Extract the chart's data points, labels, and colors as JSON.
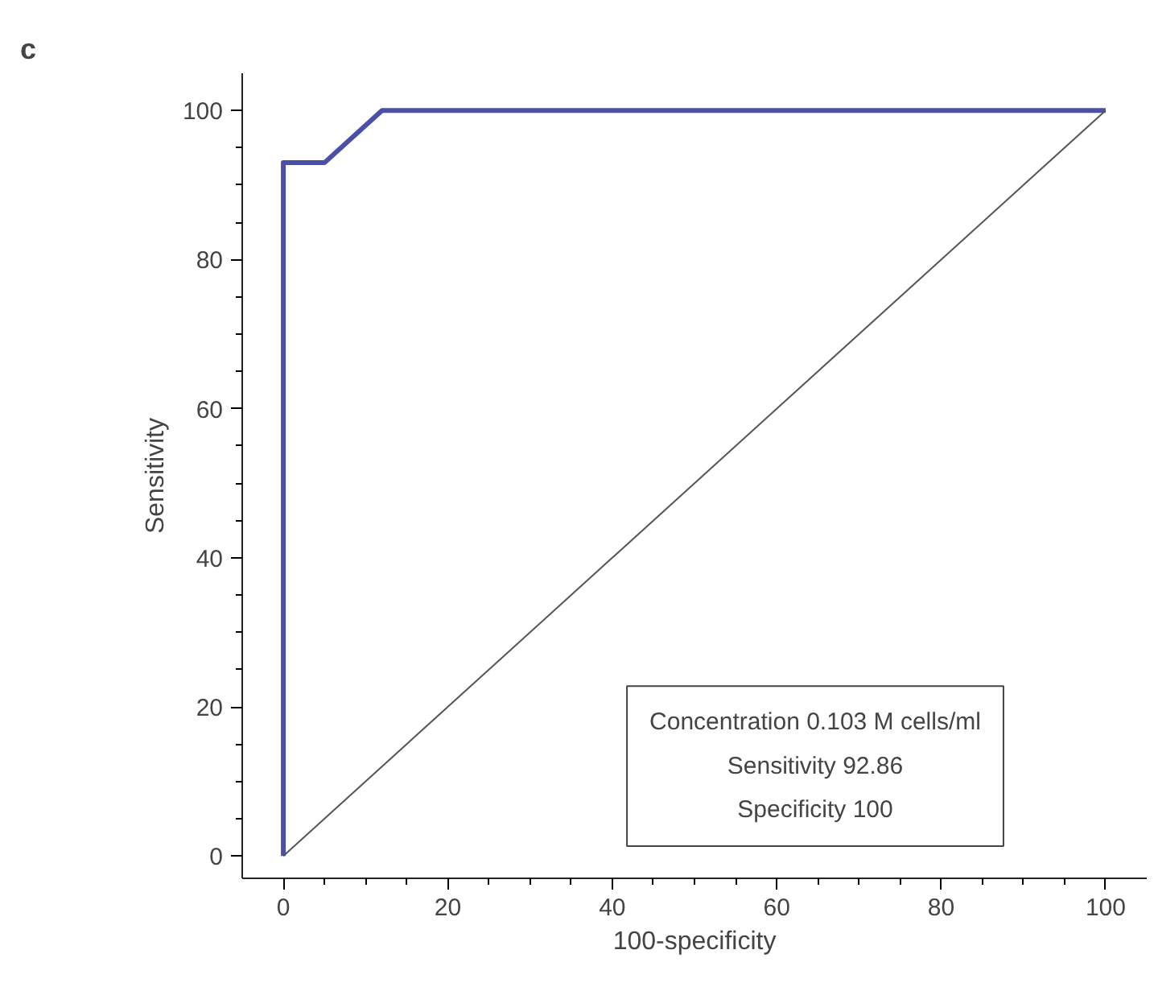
{
  "chart_data": {
    "type": "line",
    "xlabel": "100-specificity",
    "ylabel": "Sensitivity",
    "xlim": [
      -5,
      105
    ],
    "ylim": [
      -3,
      105
    ],
    "xticks": [
      0,
      20,
      40,
      60,
      80,
      100
    ],
    "yticks": [
      0,
      20,
      40,
      60,
      80,
      100
    ],
    "grid": false,
    "marker": "none",
    "line_style": "solid",
    "series": [
      {
        "x": [
          0,
          0,
          5,
          12,
          100
        ],
        "values": [
          0,
          93,
          93,
          100,
          100
        ],
        "color": "#4b4fa6"
      },
      {
        "x": [
          0,
          100
        ],
        "values": [
          0,
          100
        ],
        "color": "#555555"
      }
    ],
    "annotations": [
      "c",
      "Concentration 0.103 M cells/ml",
      "Sensitivity 92.86",
      "Specificity 100"
    ]
  }
}
